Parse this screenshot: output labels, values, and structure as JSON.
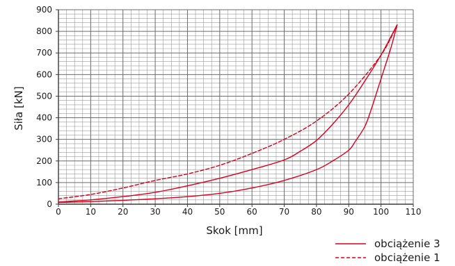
{
  "chart_data": {
    "type": "line",
    "title": "",
    "xlabel": "Skok [mm]",
    "ylabel": "Siła [kN]",
    "xlim": [
      0,
      110
    ],
    "ylim": [
      0,
      900
    ],
    "x_ticks": [
      0,
      10,
      20,
      30,
      40,
      50,
      60,
      70,
      80,
      90,
      100,
      110
    ],
    "y_ticks": [
      0,
      100,
      200,
      300,
      400,
      500,
      600,
      700,
      800,
      900
    ],
    "grid": {
      "major_x_step": 10,
      "minor_x_step": 2.5,
      "major_y_step": 100,
      "minor_y_step": 20,
      "visible": true
    },
    "legend_position": "bottom-right",
    "colors": {
      "series": "#d6001c",
      "grid": "#6b6b6b",
      "grid_minor": "#9a9a9a",
      "axis": "#3a3a3a",
      "text": "#1a1a1a"
    },
    "series": [
      {
        "name": "obciążenie 3",
        "style": "solid",
        "segment": "loading",
        "x": [
          0,
          10,
          20,
          30,
          40,
          50,
          60,
          70,
          75,
          80,
          85,
          90,
          95,
          100,
          105
        ],
        "y": [
          10,
          20,
          35,
          55,
          85,
          120,
          160,
          205,
          245,
          295,
          370,
          460,
          570,
          690,
          830
        ]
      },
      {
        "name": "",
        "style": "solid",
        "segment": "unloading",
        "x": [
          105,
          103,
          100,
          97,
          95,
          92,
          90,
          85,
          80,
          70,
          60,
          50,
          40,
          30,
          20,
          10,
          0
        ],
        "y": [
          830,
          720,
          580,
          440,
          360,
          290,
          250,
          200,
          160,
          110,
          75,
          50,
          35,
          25,
          18,
          12,
          8
        ]
      },
      {
        "name": "obciążenie 1",
        "style": "dashed",
        "segment": "loading",
        "x": [
          0,
          10,
          20,
          30,
          40,
          50,
          60,
          70,
          80,
          90,
          100,
          105
        ],
        "y": [
          25,
          45,
          75,
          110,
          140,
          180,
          235,
          300,
          385,
          510,
          690,
          830
        ]
      }
    ]
  }
}
